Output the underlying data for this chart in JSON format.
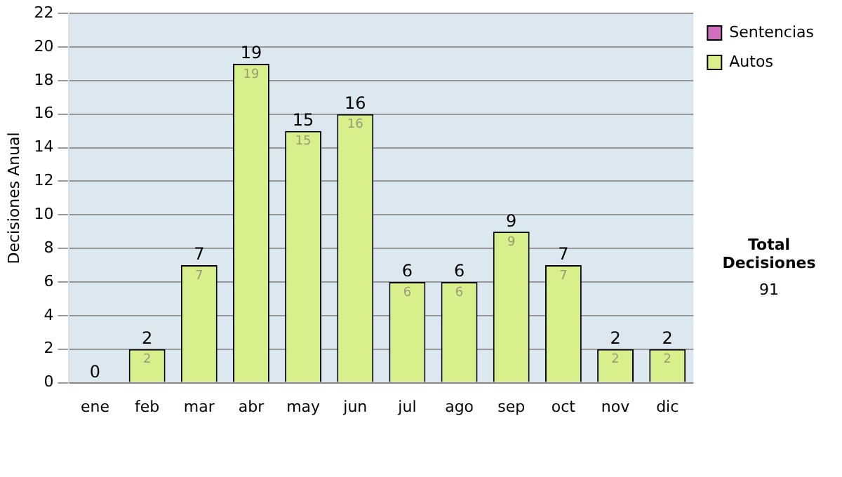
{
  "chart_data": {
    "type": "bar",
    "ylabel": "Decisiones Anual",
    "categories": [
      "ene",
      "feb",
      "mar",
      "abr",
      "may",
      "jun",
      "jul",
      "ago",
      "sep",
      "oct",
      "nov",
      "dic"
    ],
    "series": [
      {
        "name": "Sentencias",
        "color": "#d070c0",
        "values": [
          0,
          0,
          0,
          0,
          0,
          0,
          0,
          0,
          0,
          0,
          0,
          0
        ]
      },
      {
        "name": "Autos",
        "color": "#d8f08c",
        "values": [
          0,
          2,
          7,
          19,
          15,
          16,
          6,
          6,
          9,
          7,
          2,
          2
        ],
        "value_labels": [
          null,
          "2",
          "7",
          "19",
          "15",
          "16",
          "6",
          "6",
          "9",
          "7",
          "2",
          "2"
        ]
      }
    ],
    "stacked": true,
    "totals": [
      "0",
      "2",
      "7",
      "19",
      "15",
      "16",
      "6",
      "6",
      "9",
      "7",
      "2",
      "2"
    ],
    "ylim": [
      0,
      22
    ],
    "yticks": [
      0,
      2,
      4,
      6,
      8,
      10,
      12,
      14,
      16,
      18,
      20,
      22
    ],
    "grid": "y",
    "legend": "right",
    "annotations": [
      "Total Decisiones",
      "91"
    ]
  }
}
